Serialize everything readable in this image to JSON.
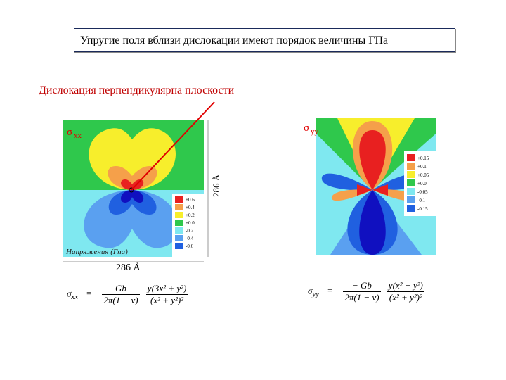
{
  "header": {
    "title": "Упругие поля вблизи дислокации имеют порядок величины ГПа"
  },
  "subtitle": "Дислокация перпендикулярна плоскости",
  "plots": {
    "left": {
      "symbol": "σ",
      "subscript": "xx",
      "size_label": "286 Å",
      "height_label": "286 Å",
      "units_label": "Напряжения (Гпа)",
      "legend": [
        "+0.6",
        "+0.4",
        "+0.2",
        "+0.0",
        "-0.2",
        "-0.4",
        "-0.6"
      ]
    },
    "right": {
      "symbol": "σ",
      "subscript": "yy",
      "legend": [
        "+0.15",
        "+0.1",
        "+0.05",
        "+0.0",
        "-0.05",
        "-0.1",
        "-0.15"
      ]
    }
  },
  "formulas": {
    "left": {
      "symbol": "σ",
      "subscript": "xx",
      "equals": "=",
      "coef_num": "Gb",
      "coef_den": "2π(1 − ν)",
      "expr_num": "y(3x² + y²)",
      "expr_den": "(x² + y²)²"
    },
    "right": {
      "symbol": "σ",
      "subscript": "yy",
      "equals": "=",
      "coef_num": "− Gb",
      "coef_den": "2π(1 − ν)",
      "expr_num": "y(x² − y²)",
      "expr_den": "(x² + y²)²"
    }
  }
}
